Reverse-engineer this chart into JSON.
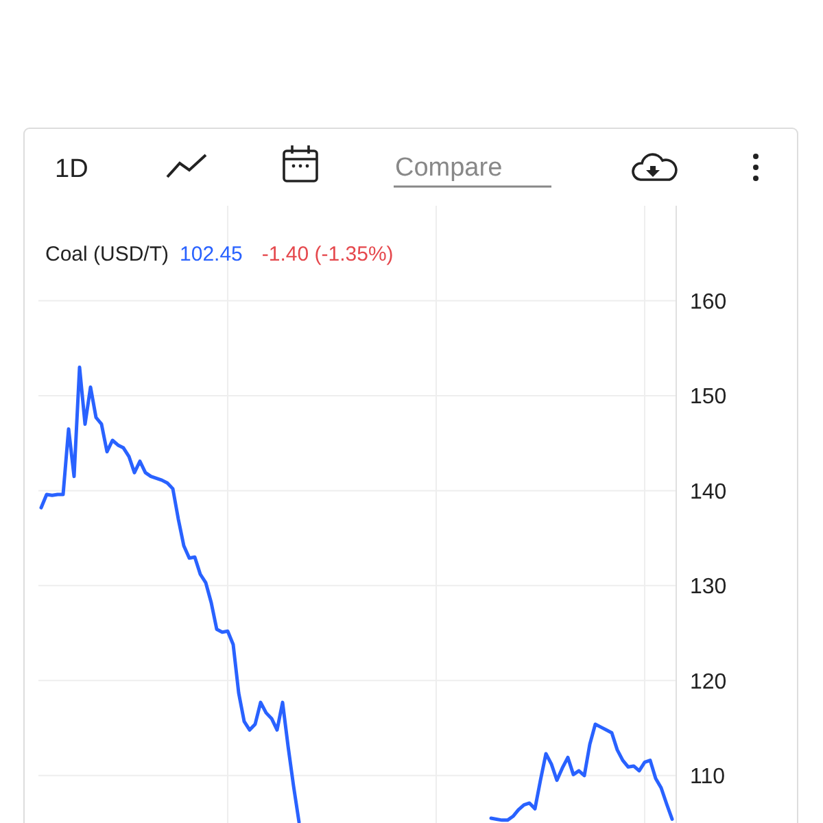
{
  "chart_data": {
    "type": "line",
    "title": "Coal (USD/T)",
    "grid": true,
    "tick_labels": "y",
    "marker": "none",
    "line_style": "solid",
    "categories": [
      null,
      null,
      null,
      null,
      null,
      null,
      null,
      null,
      null,
      null,
      null,
      null,
      null,
      null,
      null,
      null,
      null,
      null,
      null,
      null,
      null,
      null,
      null,
      null,
      null,
      null,
      null,
      null,
      null,
      null,
      null,
      null,
      null,
      null,
      null,
      null,
      null,
      null,
      null,
      null,
      null,
      null,
      null,
      null,
      null,
      null,
      null,
      null,
      null,
      null,
      null,
      null,
      null,
      null,
      null,
      null,
      null,
      null,
      null,
      null,
      null,
      null,
      null,
      null,
      null,
      null,
      null,
      null,
      null,
      null,
      null,
      null,
      null,
      null,
      null,
      null,
      null,
      null,
      null,
      null,
      null,
      null,
      null,
      null,
      null,
      null,
      null,
      null,
      null,
      null,
      null,
      null,
      null,
      null,
      null,
      null,
      null,
      null,
      null,
      null,
      null,
      null,
      null,
      null,
      null,
      null,
      null,
      null,
      null,
      null,
      null,
      null,
      null,
      null,
      null,
      null
    ],
    "ylim": [
      105,
      170
    ],
    "yticks": [
      110,
      120,
      130,
      140,
      150,
      160
    ],
    "annotations": [
      "1D",
      "Compare",
      "102.45",
      "-1.40 (-1.35%)"
    ],
    "series": [
      {
        "color": "#2962ff",
        "values": [
          138.2,
          139.6,
          139.5,
          139.6,
          139.6,
          146.5,
          141.5,
          153.0,
          147.0,
          150.9,
          147.7,
          147.0,
          144.1,
          145.3,
          144.8,
          144.5,
          143.6,
          141.9,
          143.1,
          141.9,
          141.5,
          141.3,
          141.1,
          140.8,
          140.2,
          137.0,
          134.2,
          132.9,
          133.0,
          131.2,
          130.3,
          128.2,
          125.4,
          125.1,
          125.2,
          123.8,
          118.7,
          115.7,
          114.8,
          115.4,
          117.7,
          116.6,
          116.0,
          114.8,
          117.7,
          113.1,
          108.9,
          105.1,
          null,
          null,
          null,
          null,
          null,
          null,
          null,
          null,
          null,
          null,
          null,
          null,
          null,
          null,
          null,
          null,
          null,
          null,
          null,
          null,
          null,
          null,
          null,
          null,
          null,
          null,
          null,
          null,
          null,
          null,
          null,
          null,
          null,
          null,
          105.5,
          105.4,
          105.3,
          105.3,
          105.7,
          106.4,
          106.9,
          107.1,
          106.5,
          109.5,
          112.3,
          111.2,
          109.5,
          110.8,
          111.9,
          110.1,
          110.5,
          110.0,
          113.3,
          115.4,
          115.1,
          114.8,
          114.5,
          112.7,
          111.6,
          110.9,
          111.0,
          110.5,
          111.4,
          111.6,
          109.7,
          108.7,
          107.0,
          105.4
        ]
      }
    ]
  }
}
